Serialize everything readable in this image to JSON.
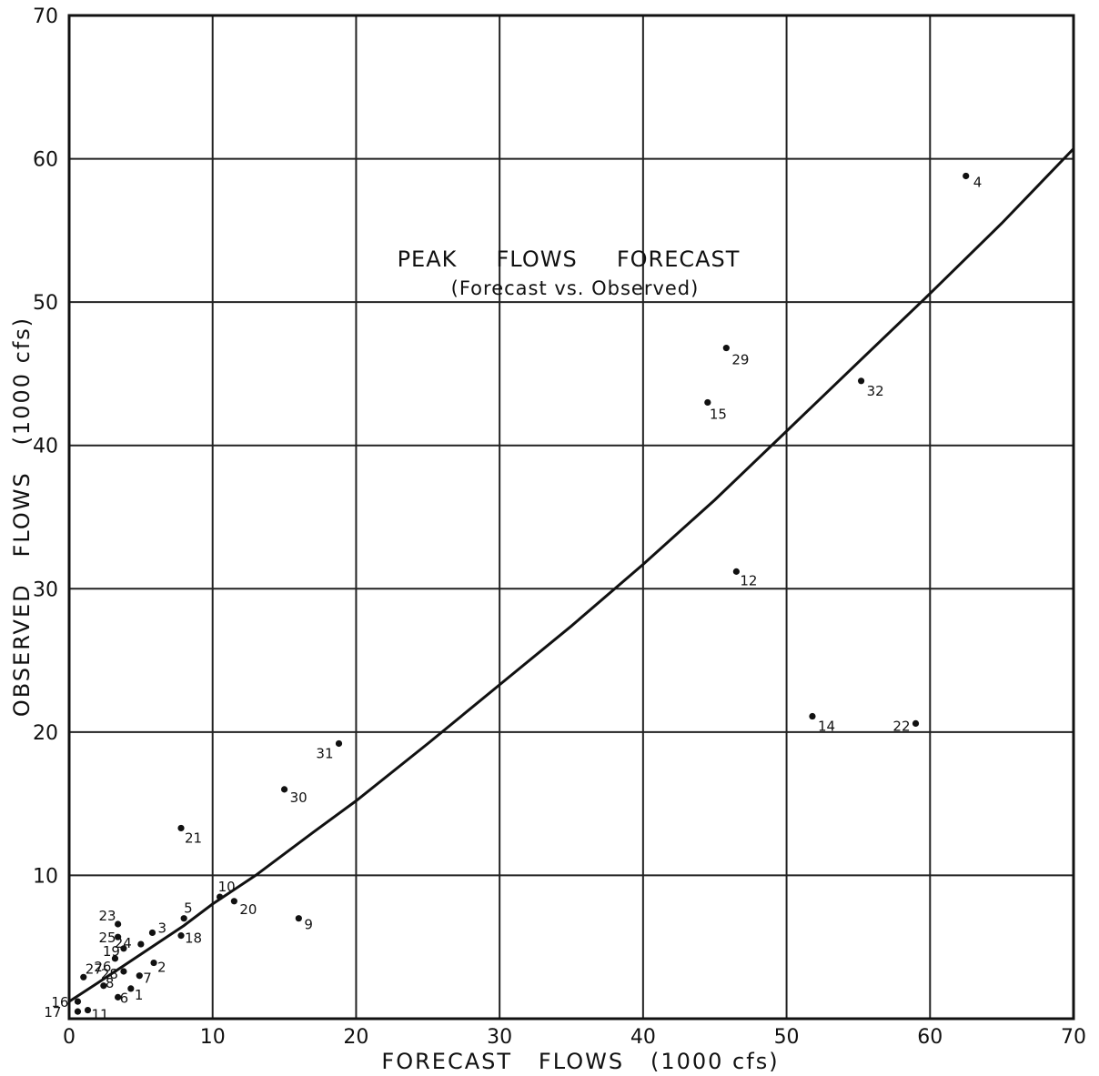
{
  "chart_data": {
    "type": "scatter",
    "title": "PEAK     FLOWS     FORECAST",
    "subtitle": "(Forecast vs. Observed)",
    "xlabel": "FORECAST   FLOWS   (1000 cfs)",
    "ylabel": "OBSERVED   FLOWS   (1000 cfs)",
    "xlim": [
      0,
      70
    ],
    "ylim": [
      0,
      70
    ],
    "grid": true,
    "x_ticks": [
      "0",
      "10",
      "20",
      "30",
      "40",
      "50",
      "60",
      "70"
    ],
    "y_ticks": [
      "10",
      "20",
      "30",
      "40",
      "50",
      "60",
      "70"
    ],
    "points": [
      {
        "label": "4",
        "x": 62.5,
        "y": 58.8
      },
      {
        "label": "29",
        "x": 45.8,
        "y": 46.8
      },
      {
        "label": "32",
        "x": 55.2,
        "y": 44.5
      },
      {
        "label": "15",
        "x": 44.5,
        "y": 43.0
      },
      {
        "label": "12",
        "x": 46.5,
        "y": 31.2
      },
      {
        "label": "14",
        "x": 51.8,
        "y": 21.1
      },
      {
        "label": "22",
        "x": 59.0,
        "y": 20.6
      },
      {
        "label": "31",
        "x": 18.8,
        "y": 19.2
      },
      {
        "label": "30",
        "x": 15.0,
        "y": 16.0
      },
      {
        "label": "21",
        "x": 7.8,
        "y": 13.3
      },
      {
        "label": "10",
        "x": 10.5,
        "y": 8.5
      },
      {
        "label": "20",
        "x": 11.5,
        "y": 8.2
      },
      {
        "label": "9",
        "x": 16.0,
        "y": 7.0
      },
      {
        "label": "5",
        "x": 8.0,
        "y": 7.0
      },
      {
        "label": "18",
        "x": 7.8,
        "y": 5.8
      },
      {
        "label": "3",
        "x": 5.8,
        "y": 6.0
      },
      {
        "label": "23",
        "x": 3.4,
        "y": 6.6
      },
      {
        "label": "24",
        "x": 5.0,
        "y": 5.2
      },
      {
        "label": "25",
        "x": 3.4,
        "y": 5.7
      },
      {
        "label": "19",
        "x": 3.8,
        "y": 4.9
      },
      {
        "label": "26",
        "x": 3.2,
        "y": 4.2
      },
      {
        "label": "2",
        "x": 5.9,
        "y": 3.9
      },
      {
        "label": "28",
        "x": 3.8,
        "y": 3.3
      },
      {
        "label": "7",
        "x": 4.9,
        "y": 3.0
      },
      {
        "label": "27",
        "x": 1.0,
        "y": 2.9
      },
      {
        "label": "8",
        "x": 2.4,
        "y": 2.3
      },
      {
        "label": "1",
        "x": 4.3,
        "y": 2.1
      },
      {
        "label": "6",
        "x": 3.4,
        "y": 1.5
      },
      {
        "label": "16",
        "x": 0.6,
        "y": 1.2
      },
      {
        "label": "17",
        "x": 0.6,
        "y": 0.5
      },
      {
        "label": "11",
        "x": 1.3,
        "y": 0.6
      }
    ],
    "curve": {
      "x": [
        0,
        2,
        5,
        8,
        10,
        13,
        17,
        20,
        25,
        30,
        35,
        40,
        45,
        50,
        55,
        60,
        65,
        70
      ],
      "y": [
        1.2,
        2.5,
        4.5,
        6.5,
        8.0,
        10.0,
        13.0,
        15.2,
        19.2,
        23.3,
        27.4,
        31.7,
        36.2,
        41.0,
        45.8,
        50.6,
        55.5,
        60.7
      ]
    }
  }
}
